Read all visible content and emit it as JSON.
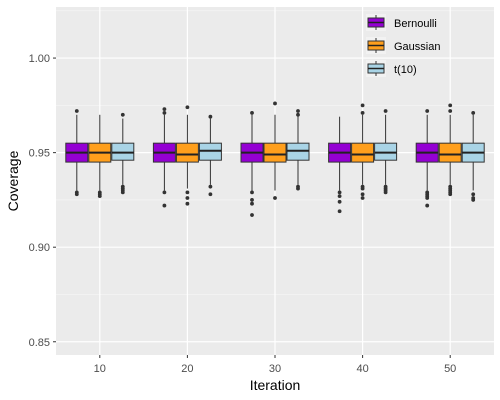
{
  "chart_data": {
    "type": "boxplot",
    "title": "",
    "xlabel": "Iteration",
    "ylabel": "Coverage",
    "categories": [
      "10",
      "20",
      "30",
      "40",
      "50"
    ],
    "ylim": [
      0.843,
      1.027
    ],
    "y_ticks": [
      0.85,
      0.9,
      0.95,
      1.0
    ],
    "y_tick_labels": [
      "0.85",
      "0.90",
      "0.95",
      "1.00"
    ],
    "grid": true,
    "legend_position": "top-right",
    "series": [
      {
        "name": "Bernoulli",
        "color": "#9400D3",
        "boxes": [
          {
            "q1": 0.945,
            "median": 0.95,
            "q3": 0.955,
            "whisker_low": 0.93,
            "whisker_high": 0.97,
            "outliers": [
              0.972,
              0.929,
              0.928
            ]
          },
          {
            "q1": 0.945,
            "median": 0.95,
            "q3": 0.955,
            "whisker_low": 0.93,
            "whisker_high": 0.97,
            "outliers": [
              0.973,
              0.971,
              0.929,
              0.922
            ]
          },
          {
            "q1": 0.945,
            "median": 0.95,
            "q3": 0.955,
            "whisker_low": 0.93,
            "whisker_high": 0.97,
            "outliers": [
              0.971,
              0.929,
              0.925,
              0.923,
              0.917
            ]
          },
          {
            "q1": 0.945,
            "median": 0.95,
            "q3": 0.955,
            "whisker_low": 0.93,
            "whisker_high": 0.969,
            "outliers": [
              0.929,
              0.927,
              0.924,
              0.919
            ]
          },
          {
            "q1": 0.945,
            "median": 0.95,
            "q3": 0.955,
            "whisker_low": 0.93,
            "whisker_high": 0.97,
            "outliers": [
              0.972,
              0.929,
              0.928,
              0.927,
              0.926,
              0.922
            ]
          }
        ]
      },
      {
        "name": "Gaussian",
        "color": "#FF9F1C",
        "boxes": [
          {
            "q1": 0.945,
            "median": 0.95,
            "q3": 0.955,
            "whisker_low": 0.93,
            "whisker_high": 0.97,
            "outliers": [
              0.929,
              0.928,
              0.927
            ]
          },
          {
            "q1": 0.945,
            "median": 0.949,
            "q3": 0.955,
            "whisker_low": 0.931,
            "whisker_high": 0.97,
            "outliers": [
              0.974,
              0.929,
              0.926,
              0.923
            ]
          },
          {
            "q1": 0.945,
            "median": 0.949,
            "q3": 0.955,
            "whisker_low": 0.93,
            "whisker_high": 0.97,
            "outliers": [
              0.976,
              0.926
            ]
          },
          {
            "q1": 0.945,
            "median": 0.949,
            "q3": 0.955,
            "whisker_low": 0.933,
            "whisker_high": 0.97,
            "outliers": [
              0.975,
              0.971,
              0.932,
              0.931,
              0.928,
              0.926
            ]
          },
          {
            "q1": 0.945,
            "median": 0.949,
            "q3": 0.955,
            "whisker_low": 0.933,
            "whisker_high": 0.97,
            "outliers": [
              0.975,
              0.972,
              0.932,
              0.931,
              0.93,
              0.929,
              0.928
            ]
          }
        ]
      },
      {
        "name": "t(10)",
        "color": "#A9D4E6",
        "boxes": [
          {
            "q1": 0.946,
            "median": 0.95,
            "q3": 0.955,
            "whisker_low": 0.933,
            "whisker_high": 0.968,
            "outliers": [
              0.97,
              0.932,
              0.931,
              0.93,
              0.929
            ]
          },
          {
            "q1": 0.946,
            "median": 0.951,
            "q3": 0.955,
            "whisker_low": 0.933,
            "whisker_high": 0.968,
            "outliers": [
              0.969,
              0.932,
              0.928
            ]
          },
          {
            "q1": 0.946,
            "median": 0.951,
            "q3": 0.955,
            "whisker_low": 0.933,
            "whisker_high": 0.97,
            "outliers": [
              0.972,
              0.97,
              0.932,
              0.931
            ]
          },
          {
            "q1": 0.946,
            "median": 0.95,
            "q3": 0.955,
            "whisker_low": 0.933,
            "whisker_high": 0.97,
            "outliers": [
              0.972,
              0.932,
              0.931,
              0.93,
              0.929
            ]
          },
          {
            "q1": 0.945,
            "median": 0.95,
            "q3": 0.955,
            "whisker_low": 0.93,
            "whisker_high": 0.97,
            "outliers": [
              0.971,
              0.928,
              0.926,
              0.925
            ]
          }
        ]
      }
    ]
  }
}
